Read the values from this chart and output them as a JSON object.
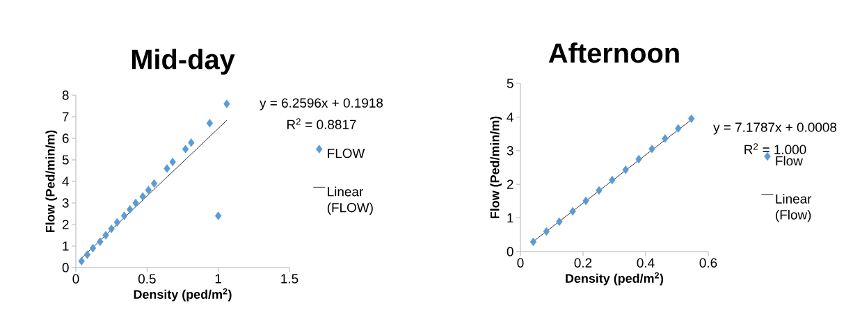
{
  "chart_data": [
    {
      "type": "scatter",
      "title": "Mid-day",
      "xlabel": "Density (ped/m$^{2}$)",
      "ylabel": "Flow (Ped/min/m)",
      "xlim": [
        0,
        1.5
      ],
      "ylim": [
        0,
        8
      ],
      "xticks": [
        0,
        0.5,
        1,
        1.5
      ],
      "yticks": [
        0,
        1,
        2,
        3,
        4,
        5,
        6,
        7,
        8
      ],
      "grid": false,
      "legend": "right",
      "annotations": [
        "y = 6.2596x + 0.1918",
        "R$^{2}$ = 0.8817"
      ],
      "series": [
        {
          "name": "FLOW",
          "color": "#5b9bd5",
          "marker": "diamond",
          "x": [
            0.04,
            0.08,
            0.12,
            0.17,
            0.21,
            0.25,
            0.29,
            0.34,
            0.38,
            0.42,
            0.47,
            0.51,
            0.55,
            0.64,
            0.68,
            0.77,
            0.81,
            0.94,
            1.0,
            1.06
          ],
          "values": [
            0.3,
            0.6,
            0.9,
            1.2,
            1.5,
            1.8,
            2.1,
            2.4,
            2.7,
            3.0,
            3.3,
            3.6,
            3.9,
            4.6,
            4.9,
            5.5,
            5.8,
            6.7,
            2.4,
            7.6
          ]
        },
        {
          "name": "Linear (FLOW)",
          "type": "line",
          "color": "#000000",
          "x": [
            0.04,
            1.06
          ],
          "marker": "none",
          "values": [
            0.44,
            6.83
          ]
        }
      ]
    },
    {
      "type": "scatter",
      "title": "Afternoon",
      "xlabel": "Density (ped/m$^{2}$)",
      "ylabel": "Flow (Ped/min/m)",
      "xlim": [
        0,
        0.6
      ],
      "ylim": [
        0,
        5
      ],
      "xticks": [
        0,
        0.2,
        0.4,
        0.6
      ],
      "yticks": [
        0,
        1,
        2,
        3,
        4,
        5
      ],
      "grid": false,
      "legend": "right",
      "annotations": [
        "y = 7.1787x + 0.0008",
        "R$^{2}$ = 1.000"
      ],
      "series": [
        {
          "name": "Flow",
          "color": "#5b9bd5",
          "marker": "diamond",
          "x": [
            0.041,
            0.083,
            0.124,
            0.167,
            0.209,
            0.251,
            0.293,
            0.336,
            0.378,
            0.42,
            0.462,
            0.504,
            0.546
          ],
          "values": [
            0.29,
            0.6,
            0.89,
            1.2,
            1.51,
            1.82,
            2.13,
            2.43,
            2.75,
            3.05,
            3.36,
            3.66,
            3.95
          ]
        },
        {
          "name": "Linear (Flow)",
          "type": "line",
          "color": "#000000",
          "x": [
            0.041,
            0.546
          ],
          "marker": "none",
          "values": [
            0.3,
            3.92
          ]
        }
      ]
    }
  ]
}
